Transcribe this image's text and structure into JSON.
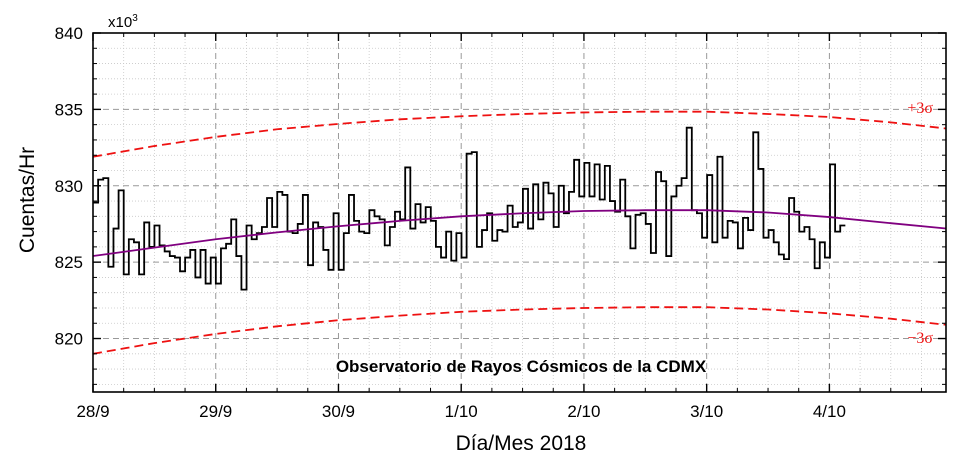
{
  "chart_data": {
    "type": "line",
    "xlabel": "Día/Mes 2018",
    "ylabel": "Cuentas/Hr",
    "y_multiplier_label": "x10",
    "y_multiplier_exp": "3",
    "annotation": "Observatorio de Rayos Cósmicos de la CDMX",
    "x_unit": "days since 28/9 2018 00:00",
    "xlim": [
      0,
      6.95
    ],
    "ylim": [
      816.5,
      840
    ],
    "x_ticks": [
      0,
      1,
      2,
      3,
      4,
      5,
      6
    ],
    "x_tick_labels": [
      "28/9",
      "29/9",
      "30/9",
      "1/10",
      "2/10",
      "3/10",
      "4/10"
    ],
    "y_ticks": [
      820,
      825,
      830,
      835,
      840
    ],
    "y_tick_labels": [
      "820",
      "825",
      "830",
      "835",
      "840"
    ],
    "grid": true,
    "colors": {
      "counts": "#000000",
      "fit": "#800080",
      "sigma": "#ee1111",
      "grid": "#999999"
    },
    "sigma_labels": {
      "upper": "+3σ",
      "lower": "−3σ"
    },
    "step_width": 0.0417,
    "series": [
      {
        "style": "step",
        "values": [
          828.9,
          830.4,
          830.5,
          824.7,
          827.2,
          829.7,
          824.2,
          826.5,
          826.3,
          824.2,
          827.6,
          826.0,
          827.4,
          826.1,
          825.7,
          825.4,
          825.3,
          824.4,
          825.3,
          825.8,
          824.0,
          825.8,
          823.6,
          825.3,
          823.6,
          825.9,
          826.2,
          827.8,
          825.4,
          823.2,
          827.4,
          826.5,
          826.9,
          827.3,
          829.2,
          827.3,
          829.6,
          829.4,
          827.0,
          826.9,
          827.5,
          829.4,
          824.8,
          827.6,
          827.3,
          825.8,
          824.5,
          828.2,
          824.5,
          826.9,
          829.4,
          827.7,
          827.0,
          826.9,
          828.4,
          828.0,
          827.8,
          826.1,
          827.3,
          828.3,
          827.8,
          831.2,
          827.2,
          828.8,
          827.6,
          828.6,
          827.7,
          826.0,
          825.3,
          827.0,
          825.1,
          826.9,
          825.3,
          832.1,
          832.2,
          826.0,
          827.1,
          828.2,
          826.4,
          827.1,
          827.0,
          828.7,
          827.3,
          827.6,
          829.8,
          827.2,
          830.1,
          827.8,
          830.2,
          829.5,
          827.3,
          830.0,
          828.2,
          829.6,
          831.7,
          829.3,
          831.5,
          829.3,
          831.4,
          829.1,
          831.3,
          829.0,
          828.3,
          830.4,
          828.0,
          825.9,
          828.1,
          828.2,
          827.5,
          825.6,
          830.9,
          830.3,
          825.4,
          829.3,
          830.0,
          830.5,
          833.8,
          828.4,
          828.2,
          826.6,
          830.7,
          826.3,
          831.9,
          826.6,
          827.7,
          827.6,
          825.9,
          827.9,
          827.1,
          833.5,
          831.1,
          826.6,
          827.1,
          826.3,
          825.5,
          825.2,
          829.2,
          828.3,
          827.0,
          827.3,
          826.5,
          824.6,
          826.3,
          825.3,
          831.4,
          827.0,
          827.4
        ]
      },
      {
        "style": "fit",
        "x": [
          0,
          0.5,
          1,
          1.5,
          2,
          2.5,
          3,
          3.5,
          4,
          4.5,
          5,
          5.5,
          6,
          6.5,
          6.95
        ],
        "values": [
          825.4,
          825.95,
          826.5,
          826.95,
          827.35,
          827.7,
          828.0,
          828.2,
          828.35,
          828.4,
          828.4,
          828.25,
          827.95,
          827.55,
          827.2
        ]
      },
      {
        "style": "sigma",
        "x": [
          0,
          0.5,
          1,
          1.5,
          2,
          2.5,
          3,
          3.5,
          4,
          4.5,
          5,
          5.5,
          6,
          6.5,
          6.95
        ],
        "values": [
          831.9,
          832.6,
          833.2,
          833.7,
          834.05,
          834.35,
          834.55,
          834.7,
          834.8,
          834.85,
          834.85,
          834.7,
          834.5,
          834.15,
          833.75
        ]
      },
      {
        "style": "sigma",
        "x": [
          0,
          0.5,
          1,
          1.5,
          2,
          2.5,
          3,
          3.5,
          4,
          4.5,
          5,
          5.5,
          6,
          6.5,
          6.95
        ],
        "values": [
          819.0,
          819.7,
          820.3,
          820.8,
          821.2,
          821.5,
          821.75,
          821.9,
          822.0,
          822.05,
          822.05,
          821.9,
          821.65,
          821.3,
          820.9
        ]
      }
    ]
  }
}
